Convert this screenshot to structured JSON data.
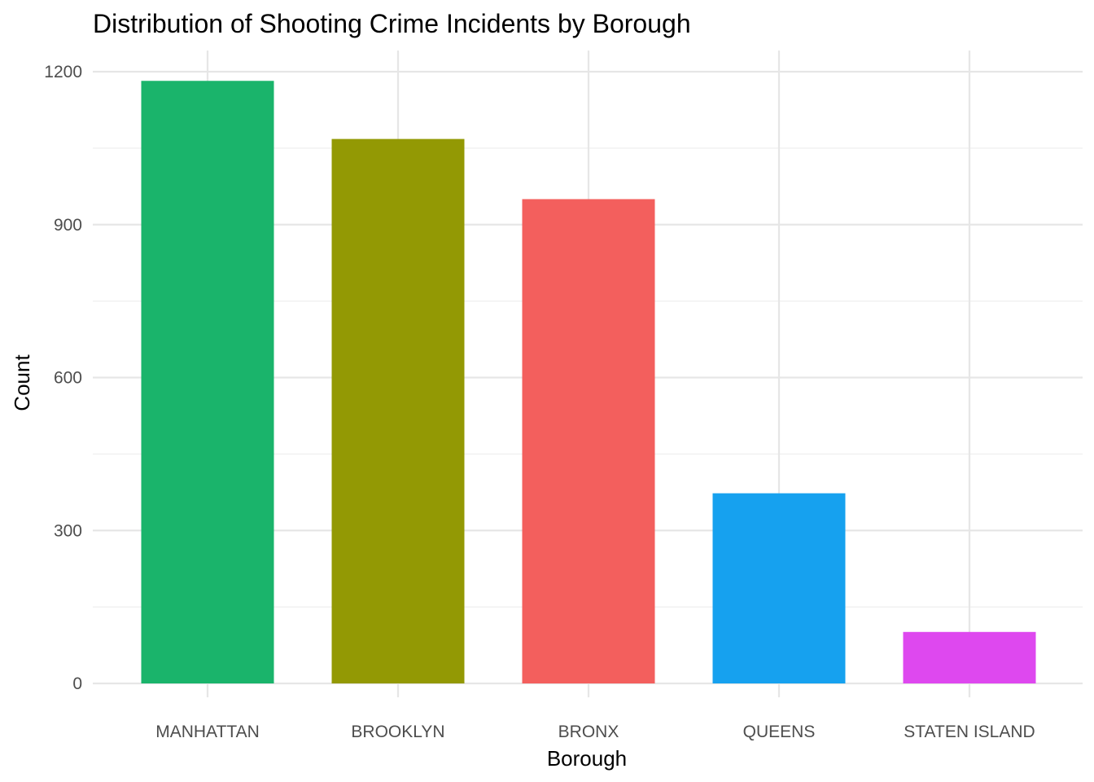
{
  "chart_data": {
    "type": "bar",
    "title": "Distribution of Shooting Crime Incidents by Borough",
    "xlabel": "Borough",
    "ylabel": "Count",
    "categories": [
      "MANHATTAN",
      "BROOKLYN",
      "BRONX",
      "QUEENS",
      "STATEN ISLAND"
    ],
    "values": [
      1182,
      1068,
      950,
      373,
      101
    ],
    "colors": [
      "#1ab46b",
      "#939904",
      "#f35f5d",
      "#16a1ef",
      "#de48ef"
    ],
    "ylim": [
      0,
      1240
    ],
    "yticks": [
      0,
      300,
      600,
      900,
      1200
    ],
    "grid": true,
    "legend": "none"
  }
}
